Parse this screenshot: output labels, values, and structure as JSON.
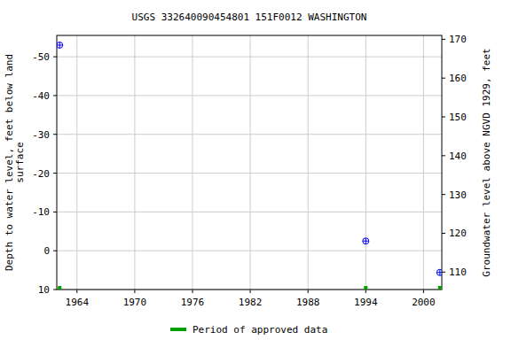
{
  "chart_data": {
    "type": "scatter",
    "title": "USGS 332640090454801 151F0012  WASHINGTON",
    "xlabel": null,
    "ylabel": "Depth to water level, feet below land surface",
    "y2label": "Groundwater level above NGVD 1929, feet",
    "xlim": [
      1961.9,
      2001.9
    ],
    "xticks": [
      1964,
      1970,
      1976,
      1982,
      1988,
      1994,
      2000
    ],
    "ylim": [
      10,
      -55.5
    ],
    "yticks": [
      -50,
      -40,
      -30,
      -20,
      -10,
      0,
      10
    ],
    "y2lim": [
      105.5,
      171
    ],
    "y2ticks": [
      110,
      120,
      130,
      140,
      150,
      160,
      170
    ],
    "grid": true,
    "legend": "bottom",
    "x": [
      1962.2,
      1994.0,
      2001.7
    ],
    "series": [
      {
        "name": null,
        "color": "#0000ff",
        "marker": "circle-plus",
        "values": [
          -53,
          -2.5,
          5.6
        ]
      },
      {
        "name": "Period of approved data",
        "color": "#00a000",
        "marker": "square",
        "values": [
          10,
          10,
          10
        ]
      }
    ]
  }
}
